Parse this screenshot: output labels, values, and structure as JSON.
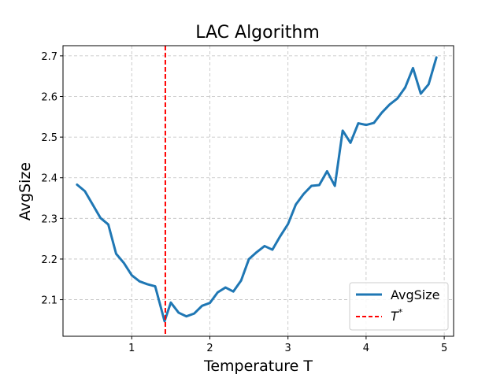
{
  "chart_data": {
    "type": "line",
    "title": "LAC Algorithm",
    "xlabel": "Temperature T",
    "ylabel": "AvgSize",
    "xlim": [
      0.12,
      5.12
    ],
    "ylim": [
      2.01,
      2.725
    ],
    "xticks": [
      1,
      2,
      3,
      4,
      5
    ],
    "xtick_labels": [
      "1",
      "2",
      "3",
      "4",
      "5"
    ],
    "yticks": [
      2.1,
      2.2,
      2.3,
      2.4,
      2.5,
      2.6,
      2.7
    ],
    "ytick_labels": [
      "2.1",
      "2.2",
      "2.3",
      "2.4",
      "2.5",
      "2.6",
      "2.7"
    ],
    "grid": true,
    "legend_position": "bottom-right",
    "series": [
      {
        "name": "AvgSize",
        "color": "#1f77b4",
        "style": "solid",
        "x": [
          0.3,
          0.4,
          0.5,
          0.6,
          0.7,
          0.8,
          0.9,
          1.0,
          1.1,
          1.2,
          1.3,
          1.42,
          1.5,
          1.6,
          1.7,
          1.8,
          1.9,
          2.0,
          2.1,
          2.2,
          2.3,
          2.4,
          2.5,
          2.6,
          2.7,
          2.8,
          2.9,
          3.0,
          3.1,
          3.2,
          3.3,
          3.4,
          3.5,
          3.6,
          3.7,
          3.8,
          3.9,
          4.0,
          4.1,
          4.2,
          4.3,
          4.4,
          4.5,
          4.6,
          4.7,
          4.8,
          4.9
        ],
        "y": [
          2.383,
          2.367,
          2.334,
          2.301,
          2.285,
          2.213,
          2.19,
          2.16,
          2.145,
          2.138,
          2.133,
          2.047,
          2.093,
          2.068,
          2.059,
          2.066,
          2.085,
          2.092,
          2.118,
          2.13,
          2.12,
          2.147,
          2.2,
          2.217,
          2.232,
          2.223,
          2.256,
          2.286,
          2.334,
          2.36,
          2.38,
          2.382,
          2.416,
          2.38,
          2.516,
          2.486,
          2.534,
          2.53,
          2.535,
          2.56,
          2.58,
          2.595,
          2.622,
          2.67,
          2.607,
          2.63,
          2.696
        ]
      },
      {
        "name": "T*",
        "color": "#ff0000",
        "style": "dashed",
        "vline_x": 1.43
      }
    ]
  }
}
